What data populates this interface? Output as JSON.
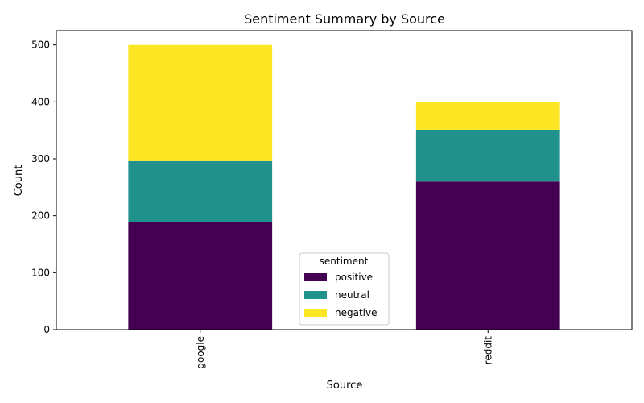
{
  "chart_data": {
    "type": "bar",
    "stacked": true,
    "title": "Sentiment Summary by Source",
    "xlabel": "Source",
    "ylabel": "Count",
    "categories": [
      "google",
      "reddit"
    ],
    "ylim": [
      0,
      525
    ],
    "yticks": [
      0,
      100,
      200,
      300,
      400,
      500
    ],
    "grid": false,
    "legend": {
      "title": "sentiment",
      "placement": "lower-center"
    },
    "series": [
      {
        "name": "positive",
        "color": "#440154",
        "values": [
          189,
          260
        ]
      },
      {
        "name": "neutral",
        "color": "#21918c",
        "values": [
          107,
          91
        ]
      },
      {
        "name": "negative",
        "color": "#fde725",
        "values": [
          204,
          49
        ]
      }
    ]
  }
}
